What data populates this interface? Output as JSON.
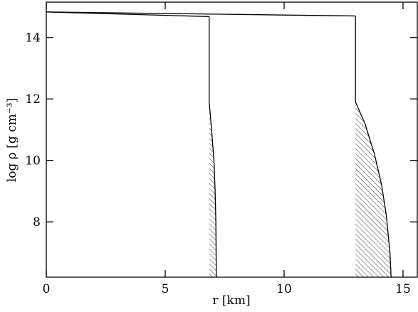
{
  "chart_data": {
    "type": "line",
    "xlabel": "r [km]",
    "ylabel": "log ρ [g cm⁻³]",
    "xlim": [
      0,
      15.6
    ],
    "xticks": [
      0,
      5,
      10,
      15
    ],
    "ylim": [
      6.2,
      15.15
    ],
    "yticks": [
      8,
      10,
      12,
      14
    ],
    "hatch": true,
    "series": [
      {
        "color": "#000000",
        "x": [
          0,
          13.0
        ],
        "values": [
          14.83,
          14.7
        ],
        "crust_x": [
          13.0,
          13.4,
          13.8,
          14.1,
          14.3,
          14.45,
          14.5
        ],
        "crust_values": [
          11.9,
          11.2,
          10.2,
          9.2,
          8.2,
          7.0,
          6.2
        ]
      },
      {
        "color": "#000000",
        "x": [
          0,
          6.85
        ],
        "values": [
          14.83,
          14.68
        ],
        "crust_x": [
          6.85,
          6.95,
          7.05,
          7.1,
          7.13,
          7.15
        ],
        "crust_values": [
          11.9,
          11.0,
          10.0,
          9.0,
          8.0,
          6.2
        ]
      }
    ]
  }
}
